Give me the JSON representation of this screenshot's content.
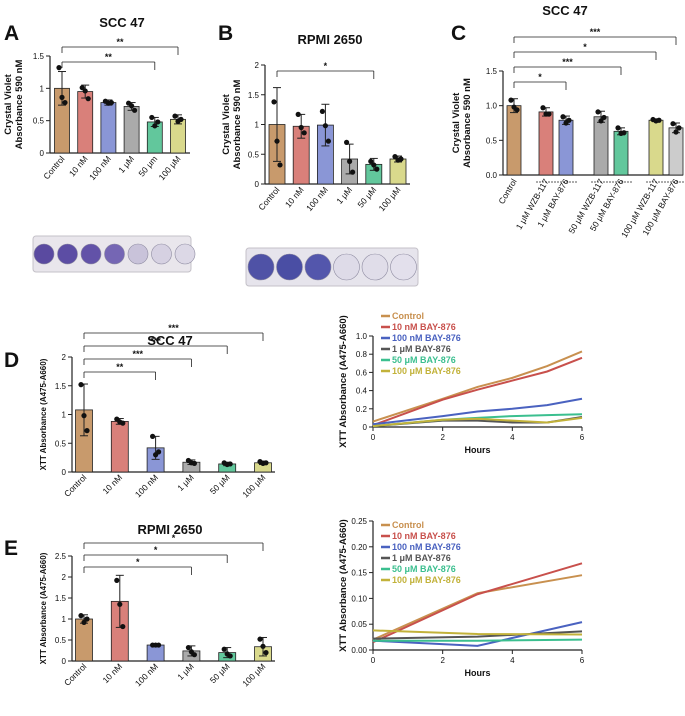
{
  "figure_labels": [
    "A",
    "B",
    "C",
    "D",
    "E"
  ],
  "chart_data": [
    {
      "id": "A",
      "type": "bar",
      "title": "SCC 47",
      "ylabel": [
        "Crystal Violet",
        "Absorbance 590 nM"
      ],
      "ylim": [
        0,
        1.5
      ],
      "yticks": [
        "0",
        "0.5",
        "1",
        "1.5"
      ],
      "ytick_values": [
        0,
        0.5,
        1,
        1.5
      ],
      "categories": [
        "Control",
        "10 nM",
        "100 nM",
        "1 μM",
        "50 μm",
        "100 μM"
      ],
      "values": [
        1.0,
        0.95,
        0.78,
        0.72,
        0.48,
        0.52
      ],
      "errors": [
        0.26,
        0.1,
        0.04,
        0.06,
        0.07,
        0.07
      ],
      "colors": [
        "#c89a6c",
        "#d9807a",
        "#8a96d6",
        "#aaaaaa",
        "#62c79c",
        "#d9d98c"
      ],
      "points": [
        [
          1.32,
          0.86,
          0.78
        ],
        [
          1.01,
          0.96,
          0.84
        ],
        [
          0.8,
          0.77,
          0.78
        ],
        [
          0.77,
          0.73,
          0.66
        ],
        [
          0.55,
          0.42,
          0.48
        ],
        [
          0.57,
          0.49,
          0.52
        ]
      ],
      "significance": [
        {
          "from": 0,
          "to": 5,
          "label": "**"
        },
        {
          "from": 0,
          "to": 4,
          "label": "**"
        }
      ],
      "image_caption": ""
    },
    {
      "id": "B",
      "type": "bar",
      "title": "RPMI 2650",
      "ylabel": [
        "Crystal Violet",
        "Absorbance 590 nM"
      ],
      "ylim": [
        0,
        2
      ],
      "yticks": [
        "0",
        "0.5",
        "1",
        "1.5",
        "2"
      ],
      "ytick_values": [
        0,
        0.5,
        1,
        1.5,
        2
      ],
      "categories": [
        "Control",
        "10 nM",
        "100 nM",
        "1 μM",
        "50 μM",
        "100 μM"
      ],
      "values": [
        1.0,
        0.97,
        0.99,
        0.42,
        0.33,
        0.42
      ],
      "errors": [
        0.62,
        0.2,
        0.35,
        0.25,
        0.1,
        0.05
      ],
      "colors": [
        "#c89a6c",
        "#d9807a",
        "#8a96d6",
        "#aaaaaa",
        "#62c79c",
        "#d9d98c"
      ],
      "points": [
        [
          1.38,
          0.72,
          0.32
        ],
        [
          1.17,
          0.95,
          0.86
        ],
        [
          1.22,
          0.98,
          0.72
        ],
        [
          0.7,
          0.38,
          0.2
        ],
        [
          0.38,
          0.32,
          0.25
        ],
        [
          0.46,
          0.4,
          0.42
        ]
      ],
      "significance": [
        {
          "from": 0,
          "to": 4,
          "label": "*"
        }
      ]
    },
    {
      "id": "C",
      "type": "bar",
      "title": "SCC 47",
      "ylabel": [
        "Crystal Violet",
        "Absorbance 590 nM"
      ],
      "ylim": [
        0,
        1.5
      ],
      "yticks": [
        "0.0",
        "0.5",
        "1.0",
        "1.5"
      ],
      "ytick_values": [
        0,
        0.5,
        1,
        1.5
      ],
      "categories": [
        "Control",
        "1 μM WZB-117",
        "1 μM BAY-876",
        "50 μM WZB-117",
        "50 μM BAY-876",
        "100 μM WZB-117",
        "100 μM BAY-876"
      ],
      "values": [
        1.0,
        0.91,
        0.79,
        0.84,
        0.63,
        0.79,
        0.68
      ],
      "errors": [
        0.1,
        0.06,
        0.06,
        0.08,
        0.05,
        0.02,
        0.07
      ],
      "colors": [
        "#c89a6c",
        "#d9807a",
        "#8a96d6",
        "#aaaaaa",
        "#62c79c",
        "#d9d98c",
        "#cccccc"
      ],
      "points": [
        [
          1.08,
          0.98,
          0.94
        ],
        [
          0.97,
          0.88,
          0.88
        ],
        [
          0.84,
          0.75,
          0.79
        ],
        [
          0.91,
          0.78,
          0.83
        ],
        [
          0.68,
          0.6,
          0.61
        ],
        [
          0.8,
          0.78,
          0.79
        ],
        [
          0.74,
          0.62,
          0.68
        ]
      ],
      "significance": [
        {
          "from": 0,
          "to": 6,
          "label": "***"
        },
        {
          "from": 0,
          "to": 5,
          "label": "*"
        },
        {
          "from": 0,
          "to": 4,
          "label": "***"
        },
        {
          "from": 0,
          "to": 2,
          "label": "*"
        }
      ]
    },
    {
      "id": "D",
      "type": "bar",
      "title": "SCC 47",
      "ylabel": [
        "XTT Absorbance  (A475-A660)"
      ],
      "ylim": [
        0,
        2
      ],
      "yticks": [
        "0",
        "0.5",
        "1",
        "1.5",
        "2"
      ],
      "ytick_values": [
        0,
        0.5,
        1,
        1.5,
        2
      ],
      "categories": [
        "Control",
        "10 nM",
        "100 nM",
        "1 μM",
        "50 μM",
        "100 μM"
      ],
      "values": [
        1.08,
        0.88,
        0.42,
        0.17,
        0.14,
        0.16
      ],
      "errors": [
        0.45,
        0.05,
        0.2,
        0.04,
        0.03,
        0.03
      ],
      "colors": [
        "#c89a6c",
        "#d9807a",
        "#8a96d6",
        "#aaaaaa",
        "#62c79c",
        "#d9d98c"
      ],
      "points": [
        [
          1.52,
          0.98,
          0.72
        ],
        [
          0.92,
          0.87,
          0.85
        ],
        [
          0.62,
          0.3,
          0.35
        ],
        [
          0.2,
          0.16,
          0.15
        ],
        [
          0.16,
          0.13,
          0.14
        ],
        [
          0.18,
          0.15,
          0.16
        ]
      ],
      "significance": [
        {
          "from": 0,
          "to": 5,
          "label": "***"
        },
        {
          "from": 0,
          "to": 4,
          "label": "***"
        },
        {
          "from": 0,
          "to": 3,
          "label": "***"
        },
        {
          "from": 0,
          "to": 2,
          "label": "**"
        }
      ]
    },
    {
      "id": "E",
      "type": "bar",
      "title": "RPMI 2650",
      "ylabel": [
        "XTT Absorbance  (A475-A660)"
      ],
      "ylim": [
        0,
        2.5
      ],
      "yticks": [
        "0",
        "0.5",
        "1",
        "1.5",
        "2",
        "2.5"
      ],
      "ytick_values": [
        0,
        0.5,
        1,
        1.5,
        2,
        2.5
      ],
      "categories": [
        "Control",
        "10 nM",
        "100 nM",
        "1 μM",
        "50 μM",
        "100 μM"
      ],
      "values": [
        1.0,
        1.42,
        0.38,
        0.24,
        0.2,
        0.34
      ],
      "errors": [
        0.1,
        0.62,
        0.02,
        0.12,
        0.12,
        0.22
      ],
      "colors": [
        "#c89a6c",
        "#d9807a",
        "#8a96d6",
        "#aaaaaa",
        "#62c79c",
        "#d9d98c"
      ],
      "points": [
        [
          1.08,
          0.92,
          1.0
        ],
        [
          1.92,
          1.35,
          0.82
        ],
        [
          0.38,
          0.38,
          0.38
        ],
        [
          0.32,
          0.22,
          0.15
        ],
        [
          0.28,
          0.17,
          0.12
        ],
        [
          0.52,
          0.35,
          0.2
        ]
      ],
      "significance": [
        {
          "from": 0,
          "to": 5,
          "label": "*"
        },
        {
          "from": 0,
          "to": 4,
          "label": "*"
        },
        {
          "from": 0,
          "to": 3,
          "label": "*"
        }
      ]
    },
    {
      "id": "D-line",
      "type": "line",
      "xlabel": "Hours",
      "ylabel": "XTT Absorbance  (A475-A660)",
      "xlim": [
        0,
        6
      ],
      "ylim": [
        0,
        1.0
      ],
      "xticks": [
        "0",
        "2",
        "4",
        "6"
      ],
      "xtick_values": [
        0,
        2,
        4,
        6
      ],
      "yticks": [
        "0",
        "0.2",
        "0.4",
        "0.6",
        "0.8",
        "1.0"
      ],
      "ytick_values": [
        0,
        0.2,
        0.4,
        0.6,
        0.8,
        1.0
      ],
      "legend": "top-left",
      "series": [
        {
          "name": "Control",
          "color": "#c8904f",
          "x": [
            0,
            2,
            3,
            4,
            5,
            6
          ],
          "y": [
            0.06,
            0.31,
            0.44,
            0.54,
            0.67,
            0.83
          ]
        },
        {
          "name": "10 nM BAY-876",
          "color": "#c8504c",
          "x": [
            0,
            2,
            3,
            4,
            5,
            6
          ],
          "y": [
            0.02,
            0.3,
            0.41,
            0.51,
            0.61,
            0.76
          ]
        },
        {
          "name": "100 nM BAY-876",
          "color": "#4a62c0",
          "x": [
            0,
            2,
            3,
            4,
            5,
            6
          ],
          "y": [
            0.03,
            0.12,
            0.17,
            0.2,
            0.24,
            0.31
          ]
        },
        {
          "name": "1 μM BAY-876",
          "color": "#555555",
          "x": [
            0,
            2,
            3,
            4,
            5,
            6
          ],
          "y": [
            0.01,
            0.07,
            0.07,
            0.05,
            0.05,
            0.11
          ]
        },
        {
          "name": "50 μM BAY-876",
          "color": "#3bbf8f",
          "x": [
            0,
            2,
            3,
            4,
            5,
            6
          ],
          "y": [
            0.01,
            0.08,
            0.1,
            0.12,
            0.13,
            0.14
          ]
        },
        {
          "name": "100 μM BAY-876",
          "color": "#c2b23a",
          "x": [
            0,
            2,
            3,
            4,
            5,
            6
          ],
          "y": [
            0.01,
            0.08,
            0.09,
            0.07,
            0.05,
            0.1
          ]
        }
      ]
    },
    {
      "id": "E-line",
      "type": "line",
      "xlabel": "Hours",
      "ylabel": "XTT Absorbance  (A475-A660)",
      "xlim": [
        0,
        6
      ],
      "ylim": [
        0,
        0.25
      ],
      "xticks": [
        "0",
        "2",
        "4",
        "6"
      ],
      "xtick_values": [
        0,
        2,
        4,
        6
      ],
      "yticks": [
        "0.00",
        "0.05",
        "0.10",
        "0.15",
        "0.20",
        "0.25"
      ],
      "ytick_values": [
        0,
        0.05,
        0.1,
        0.15,
        0.2,
        0.25
      ],
      "legend": "top-left",
      "series": [
        {
          "name": "Control",
          "color": "#c8904f",
          "x": [
            0,
            3,
            6
          ],
          "y": [
            0.02,
            0.11,
            0.145
          ]
        },
        {
          "name": "10 nM BAY-876",
          "color": "#c8504c",
          "x": [
            0,
            3,
            6
          ],
          "y": [
            0.015,
            0.108,
            0.168
          ]
        },
        {
          "name": "100 nM BAY-876",
          "color": "#4a62c0",
          "x": [
            0,
            3,
            6
          ],
          "y": [
            0.018,
            0.008,
            0.054
          ]
        },
        {
          "name": "1 μM BAY-876",
          "color": "#555555",
          "x": [
            0,
            3,
            6
          ],
          "y": [
            0.022,
            0.026,
            0.036
          ]
        },
        {
          "name": "50 μM BAY-876",
          "color": "#3bbf8f",
          "x": [
            0,
            3,
            6
          ],
          "y": [
            0.018,
            0.018,
            0.02
          ]
        },
        {
          "name": "100 μM BAY-876",
          "color": "#c2b23a",
          "x": [
            0,
            3,
            6
          ],
          "y": [
            0.038,
            0.031,
            0.03
          ]
        }
      ]
    }
  ]
}
